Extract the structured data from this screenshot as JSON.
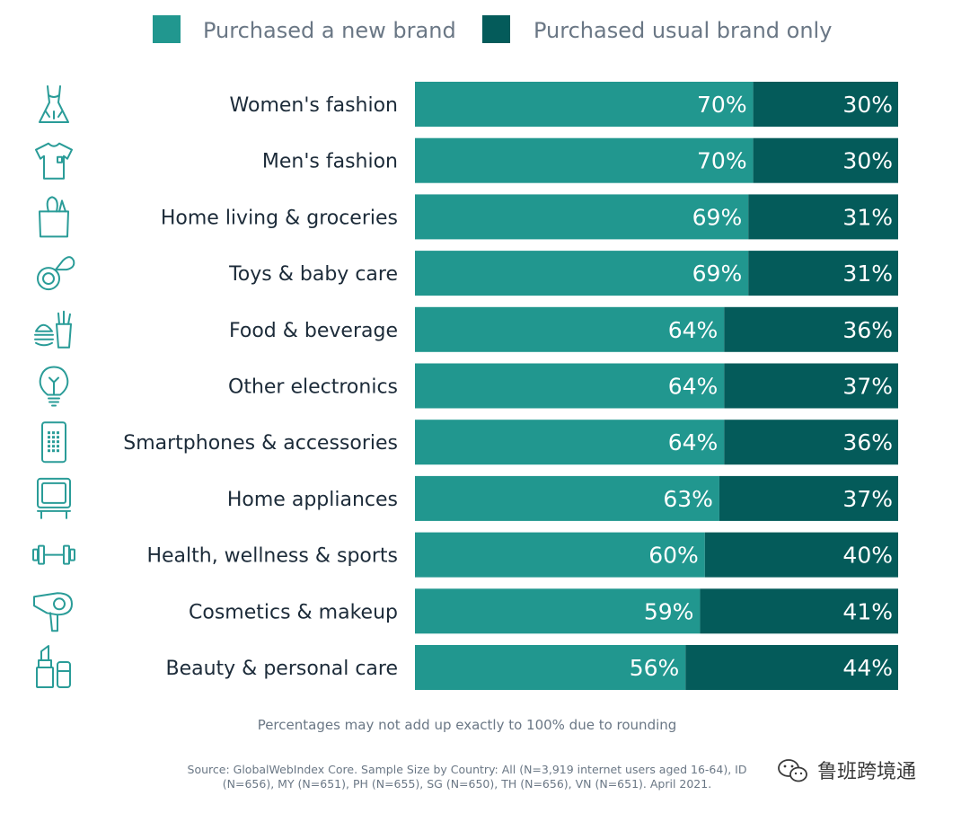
{
  "chart_data": {
    "type": "bar",
    "orientation": "horizontal",
    "stacked": true,
    "categories": [
      "Women's fashion",
      "Men's fashion",
      "Home living & groceries",
      "Toys & baby care",
      "Food & beverage",
      "Other electronics",
      "Smartphones & accessories",
      "Home appliances",
      "Health, wellness & sports",
      "Cosmetics & makeup",
      "Beauty & personal care"
    ],
    "series": [
      {
        "name": "Purchased a new brand",
        "color": "#21978f",
        "values": [
          70,
          70,
          69,
          69,
          64,
          64,
          64,
          63,
          60,
          59,
          56
        ],
        "labels": [
          "70%",
          "70%",
          "69%",
          "69%",
          "64%",
          "64%",
          "64%",
          "63%",
          "60%",
          "59%",
          "56%"
        ]
      },
      {
        "name": "Purchased usual brand only",
        "color": "#045b5a",
        "values": [
          30,
          30,
          31,
          31,
          36,
          37,
          36,
          37,
          40,
          41,
          44
        ],
        "labels": [
          "30%",
          "30%",
          "31%",
          "31%",
          "36%",
          "37%",
          "36%",
          "37%",
          "40%",
          "41%",
          "44%"
        ]
      }
    ],
    "category_icons": [
      "dress-icon",
      "tshirt-icon",
      "grocery-bag-icon",
      "pacifier-icon",
      "burger-fries-icon",
      "lightbulb-icon",
      "smartphone-icon",
      "tv-icon",
      "dumbbell-icon",
      "hairdryer-icon",
      "lipstick-icon"
    ],
    "xlim": [
      0,
      100
    ],
    "grid": false,
    "legend_position": "top"
  },
  "note": "Percentages may not add up exactly to 100% due to rounding",
  "source_lines": [
    "Source: GlobalWebIndex Core. Sample Size by Country: All (N=3,919 internet users aged 16-64), ID",
    "(N=656), MY (N=651), PH (N=655), SG (N=650), TH (N=656), VN (N=651). April 2021."
  ],
  "watermark": "鲁班跨境通"
}
